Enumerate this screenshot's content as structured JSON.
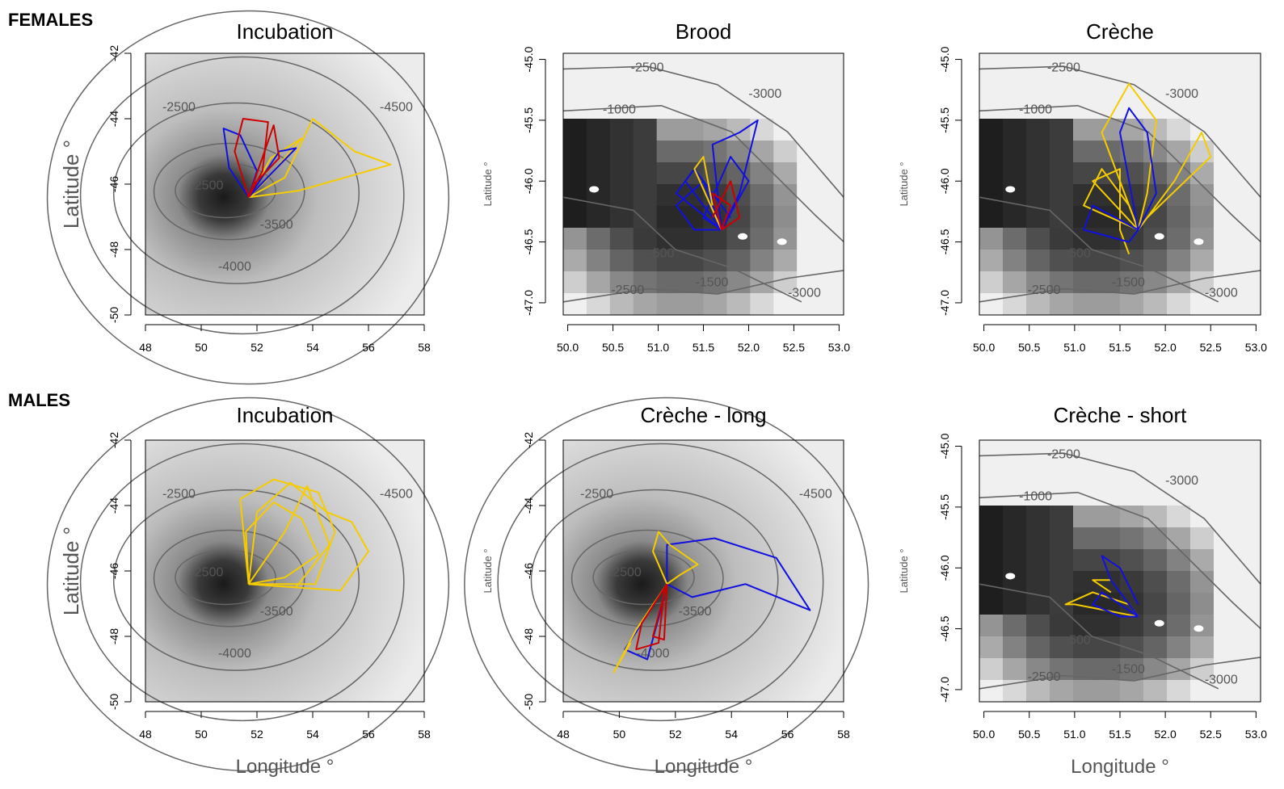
{
  "groups": {
    "top": "FEMALES",
    "bottom": "MALES"
  },
  "colors": {
    "yellow": "#f5cc00",
    "blue": "#1010e0",
    "red": "#cc0000",
    "contour": "#666666",
    "frame": "#000000"
  },
  "chart_data": [
    {
      "type": "map",
      "title": "Incubation",
      "xlabel": "",
      "ylabel": "Latitude °",
      "xlim": [
        48,
        58
      ],
      "ylim": [
        -50,
        -42
      ],
      "xticks": [
        "48",
        "50",
        "52",
        "54",
        "56",
        "58"
      ],
      "yticks": [
        "-42",
        "-44",
        "-46",
        "-48",
        "-50"
      ],
      "contour_labels": [
        "-2500",
        "-2500",
        "-3500",
        "-4000",
        "-4500"
      ],
      "tracks": [
        {
          "color": "yellow",
          "points": [
            [
              51.7,
              -46.4
            ],
            [
              53.0,
              -45.8
            ],
            [
              54.0,
              -44.0
            ],
            [
              55.5,
              -45.0
            ],
            [
              56.8,
              -45.4
            ],
            [
              53.5,
              -46.2
            ],
            [
              51.7,
              -46.4
            ]
          ]
        },
        {
          "color": "yellow",
          "points": [
            [
              51.7,
              -46.4
            ],
            [
              52.5,
              -45.2
            ],
            [
              53.6,
              -44.6
            ],
            [
              52.3,
              -45.9
            ],
            [
              51.7,
              -46.4
            ]
          ]
        },
        {
          "color": "blue",
          "points": [
            [
              51.7,
              -46.4
            ],
            [
              51.0,
              -45.5
            ],
            [
              50.8,
              -44.3
            ],
            [
              51.4,
              -44.5
            ],
            [
              52.0,
              -45.6
            ],
            [
              51.7,
              -46.4
            ]
          ]
        },
        {
          "color": "blue",
          "points": [
            [
              51.7,
              -46.4
            ],
            [
              52.8,
              -45.0
            ],
            [
              53.4,
              -44.9
            ],
            [
              52.6,
              -45.6
            ],
            [
              51.7,
              -46.4
            ]
          ]
        },
        {
          "color": "red",
          "points": [
            [
              51.7,
              -46.4
            ],
            [
              51.2,
              -45.0
            ],
            [
              51.5,
              -44.0
            ],
            [
              52.4,
              -44.1
            ],
            [
              52.2,
              -45.6
            ],
            [
              51.7,
              -46.4
            ]
          ]
        },
        {
          "color": "red",
          "points": [
            [
              51.7,
              -46.4
            ],
            [
              52.6,
              -44.2
            ],
            [
              52.8,
              -45.2
            ],
            [
              51.9,
              -46.0
            ]
          ]
        }
      ]
    },
    {
      "type": "map",
      "title": "Brood",
      "xlabel": "",
      "ylabel": "Latitude °",
      "xlim": [
        49.95,
        53.05
      ],
      "ylim": [
        -47.1,
        -44.95
      ],
      "xticks": [
        "50.0",
        "50.5",
        "51.0",
        "51.5",
        "52.0",
        "52.5",
        "53.0"
      ],
      "yticks": [
        "-45.0",
        "-45.5",
        "-46.0",
        "-46.5",
        "-47.0"
      ],
      "contour_labels": [
        "-2500",
        "-3000",
        "-1000",
        "-500",
        "-1500",
        "-2500",
        "-3000"
      ],
      "tracks": [
        {
          "color": "blue",
          "points": [
            [
              51.7,
              -46.4
            ],
            [
              51.3,
              -46.0
            ],
            [
              51.5,
              -45.8
            ],
            [
              51.6,
              -46.2
            ],
            [
              51.7,
              -46.4
            ]
          ]
        },
        {
          "color": "blue",
          "points": [
            [
              51.7,
              -46.4
            ],
            [
              51.6,
              -45.7
            ],
            [
              51.9,
              -45.6
            ],
            [
              52.1,
              -45.5
            ],
            [
              51.9,
              -46.1
            ],
            [
              51.7,
              -46.4
            ]
          ]
        },
        {
          "color": "blue",
          "points": [
            [
              51.7,
              -46.4
            ],
            [
              51.2,
              -46.1
            ],
            [
              51.4,
              -45.9
            ],
            [
              51.8,
              -46.3
            ]
          ]
        },
        {
          "color": "blue",
          "points": [
            [
              51.7,
              -46.4
            ],
            [
              52.0,
              -46.0
            ],
            [
              51.8,
              -45.8
            ],
            [
              51.5,
              -46.3
            ],
            [
              51.7,
              -46.4
            ]
          ]
        },
        {
          "color": "blue",
          "points": [
            [
              51.7,
              -46.4
            ],
            [
              51.4,
              -46.4
            ],
            [
              51.2,
              -46.2
            ],
            [
              51.5,
              -46.0
            ],
            [
              51.7,
              -46.4
            ]
          ]
        },
        {
          "color": "yellow",
          "points": [
            [
              51.7,
              -46.4
            ],
            [
              51.4,
              -45.9
            ],
            [
              51.5,
              -45.8
            ],
            [
              51.6,
              -46.2
            ]
          ]
        },
        {
          "color": "red",
          "points": [
            [
              51.7,
              -46.4
            ],
            [
              51.6,
              -46.1
            ],
            [
              51.8,
              -46.2
            ],
            [
              51.7,
              -46.4
            ]
          ]
        },
        {
          "color": "red",
          "points": [
            [
              51.7,
              -46.4
            ],
            [
              51.9,
              -46.3
            ],
            [
              51.8,
              -46.0
            ],
            [
              51.6,
              -46.3
            ]
          ]
        }
      ]
    },
    {
      "type": "map",
      "title": "Crèche",
      "xlabel": "",
      "ylabel": "Latitude °",
      "xlim": [
        49.95,
        53.05
      ],
      "ylim": [
        -47.1,
        -44.95
      ],
      "xticks": [
        "50.0",
        "50.5",
        "51.0",
        "51.5",
        "52.0",
        "52.5",
        "53.0"
      ],
      "yticks": [
        "-45.0",
        "-45.5",
        "-46.0",
        "-46.5",
        "-47.0"
      ],
      "contour_labels": [
        "-2500",
        "-3000",
        "-1000",
        "-500",
        "-1500",
        "-2500",
        "-3000"
      ],
      "tracks": [
        {
          "color": "yellow",
          "points": [
            [
              51.7,
              -46.4
            ],
            [
              51.3,
              -45.6
            ],
            [
              51.6,
              -45.2
            ],
            [
              51.9,
              -45.5
            ],
            [
              51.8,
              -46.1
            ],
            [
              51.7,
              -46.4
            ]
          ]
        },
        {
          "color": "yellow",
          "points": [
            [
              51.7,
              -46.4
            ],
            [
              52.1,
              -46.0
            ],
            [
              52.4,
              -45.6
            ],
            [
              52.5,
              -45.8
            ],
            [
              51.8,
              -46.3
            ]
          ]
        },
        {
          "color": "yellow",
          "points": [
            [
              51.7,
              -46.4
            ],
            [
              51.1,
              -46.2
            ],
            [
              51.3,
              -45.9
            ],
            [
              51.6,
              -46.2
            ],
            [
              51.7,
              -46.4
            ]
          ]
        },
        {
          "color": "yellow",
          "points": [
            [
              51.7,
              -46.4
            ],
            [
              51.2,
              -46.0
            ],
            [
              51.5,
              -45.9
            ],
            [
              51.5,
              -46.4
            ],
            [
              51.6,
              -46.6
            ]
          ]
        },
        {
          "color": "blue",
          "points": [
            [
              51.7,
              -46.4
            ],
            [
              51.5,
              -45.6
            ],
            [
              51.6,
              -45.4
            ],
            [
              51.8,
              -45.6
            ],
            [
              51.9,
              -46.1
            ],
            [
              51.7,
              -46.4
            ]
          ]
        },
        {
          "color": "blue",
          "points": [
            [
              51.7,
              -46.4
            ],
            [
              51.2,
              -46.2
            ],
            [
              51.1,
              -46.4
            ],
            [
              51.6,
              -46.5
            ],
            [
              51.7,
              -46.4
            ]
          ]
        }
      ]
    },
    {
      "type": "map",
      "title": "Incubation",
      "xlabel": "Longitude °",
      "ylabel": "Latitude °",
      "xlim": [
        48,
        58
      ],
      "ylim": [
        -50,
        -42
      ],
      "xticks": [
        "48",
        "50",
        "52",
        "54",
        "56",
        "58"
      ],
      "yticks": [
        "-42",
        "-44",
        "-46",
        "-48",
        "-50"
      ],
      "contour_labels": [
        "-2500",
        "-2500",
        "-3500",
        "-4000",
        "-4500"
      ],
      "tracks": [
        {
          "color": "yellow",
          "points": [
            [
              51.7,
              -46.4
            ],
            [
              51.4,
              -43.8
            ],
            [
              52.6,
              -43.2
            ],
            [
              54.2,
              -43.6
            ],
            [
              54.8,
              -44.8
            ],
            [
              54.1,
              -46.4
            ],
            [
              51.7,
              -46.4
            ]
          ]
        },
        {
          "color": "yellow",
          "points": [
            [
              51.7,
              -46.4
            ],
            [
              52.0,
              -44.2
            ],
            [
              53.2,
              -43.3
            ],
            [
              54.5,
              -44.2
            ],
            [
              55.4,
              -44.5
            ],
            [
              56.0,
              -45.4
            ],
            [
              55.0,
              -46.6
            ],
            [
              51.7,
              -46.4
            ]
          ]
        },
        {
          "color": "yellow",
          "points": [
            [
              51.7,
              -46.4
            ],
            [
              51.6,
              -44.8
            ],
            [
              52.6,
              -43.9
            ],
            [
              53.6,
              -44.4
            ],
            [
              54.2,
              -45.5
            ],
            [
              53.0,
              -46.2
            ],
            [
              51.7,
              -46.4
            ]
          ]
        },
        {
          "color": "yellow",
          "points": [
            [
              51.7,
              -46.4
            ],
            [
              53.0,
              -44.8
            ],
            [
              53.8,
              -43.4
            ],
            [
              54.6,
              -45.2
            ],
            [
              53.4,
              -46.5
            ],
            [
              51.7,
              -46.4
            ]
          ]
        }
      ]
    },
    {
      "type": "map",
      "title": "Crèche - long",
      "xlabel": "Longitude °",
      "ylabel": "Latitude °",
      "xlim": [
        48,
        58
      ],
      "ylim": [
        -50,
        -42
      ],
      "xticks": [
        "48",
        "50",
        "52",
        "54",
        "56",
        "58"
      ],
      "yticks": [
        "-42",
        "-44",
        "-46",
        "-48",
        "-50"
      ],
      "contour_labels": [
        "-2500",
        "-2500",
        "-3500",
        "-4000",
        "-4500"
      ],
      "tracks": [
        {
          "color": "blue",
          "points": [
            [
              51.7,
              -46.4
            ],
            [
              51.7,
              -45.2
            ],
            [
              53.4,
              -45.0
            ],
            [
              55.6,
              -45.6
            ],
            [
              56.8,
              -47.2
            ],
            [
              54.5,
              -46.4
            ],
            [
              52.6,
              -46.8
            ],
            [
              51.7,
              -46.4
            ]
          ]
        },
        {
          "color": "blue",
          "points": [
            [
              51.7,
              -46.4
            ],
            [
              50.8,
              -47.6
            ],
            [
              50.2,
              -48.4
            ],
            [
              51.0,
              -48.7
            ],
            [
              51.6,
              -46.8
            ]
          ]
        },
        {
          "color": "yellow",
          "points": [
            [
              51.7,
              -46.4
            ],
            [
              51.2,
              -45.4
            ],
            [
              51.4,
              -44.8
            ],
            [
              51.8,
              -45.2
            ],
            [
              52.8,
              -45.8
            ],
            [
              52.2,
              -46.1
            ],
            [
              51.7,
              -46.4
            ]
          ]
        },
        {
          "color": "yellow",
          "points": [
            [
              51.7,
              -46.4
            ],
            [
              50.6,
              -47.8
            ],
            [
              49.8,
              -49.1
            ],
            [
              50.4,
              -48.2
            ]
          ]
        },
        {
          "color": "red",
          "points": [
            [
              51.7,
              -46.4
            ],
            [
              50.8,
              -47.6
            ],
            [
              50.6,
              -48.4
            ],
            [
              51.4,
              -48.2
            ],
            [
              51.6,
              -46.6
            ]
          ]
        },
        {
          "color": "red",
          "points": [
            [
              51.7,
              -46.4
            ],
            [
              51.2,
              -48.0
            ],
            [
              51.6,
              -48.1
            ],
            [
              51.7,
              -46.4
            ]
          ]
        }
      ]
    },
    {
      "type": "map",
      "title": "Crèche - short",
      "xlabel": "Longitude °",
      "ylabel": "Latitude °",
      "xlim": [
        49.95,
        53.05
      ],
      "ylim": [
        -47.1,
        -44.95
      ],
      "xticks": [
        "50.0",
        "50.5",
        "51.0",
        "51.5",
        "52.0",
        "52.5",
        "53.0"
      ],
      "yticks": [
        "-45.0",
        "-45.5",
        "-46.0",
        "-46.5",
        "-47.0"
      ],
      "contour_labels": [
        "-2500",
        "-3000",
        "-1000",
        "-500",
        "-1500",
        "-2500",
        "-3000"
      ],
      "tracks": [
        {
          "color": "yellow",
          "points": [
            [
              51.7,
              -46.4
            ],
            [
              51.0,
              -46.3
            ],
            [
              50.9,
              -46.3
            ],
            [
              51.2,
              -46.2
            ],
            [
              51.6,
              -46.3
            ],
            [
              51.7,
              -46.4
            ]
          ]
        },
        {
          "color": "yellow",
          "points": [
            [
              51.4,
              -46.2
            ],
            [
              51.2,
              -46.1
            ],
            [
              51.4,
              -46.1
            ]
          ]
        },
        {
          "color": "blue",
          "points": [
            [
              51.7,
              -46.4
            ],
            [
              51.4,
              -46.1
            ],
            [
              51.3,
              -45.9
            ],
            [
              51.5,
              -46.0
            ],
            [
              51.7,
              -46.3
            ]
          ]
        },
        {
          "color": "blue",
          "points": [
            [
              51.7,
              -46.4
            ],
            [
              51.3,
              -46.2
            ],
            [
              51.2,
              -46.3
            ],
            [
              51.5,
              -46.4
            ],
            [
              51.7,
              -46.4
            ]
          ]
        }
      ]
    }
  ]
}
